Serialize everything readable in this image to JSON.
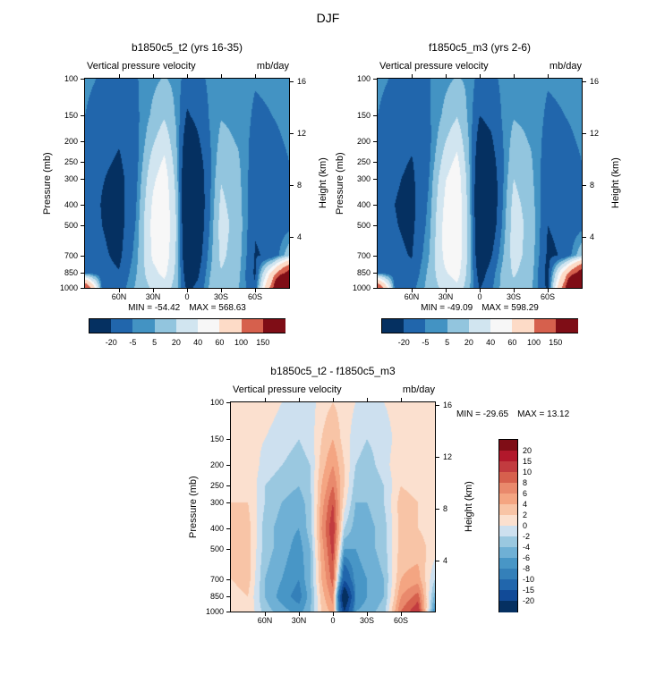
{
  "page": {
    "title": "DJF"
  },
  "axes": {
    "pressure_ticks": [
      100,
      150,
      200,
      250,
      300,
      400,
      500,
      700,
      850,
      1000
    ],
    "height_ticks": [
      {
        "km": 16,
        "p": 103
      },
      {
        "km": 12,
        "p": 182
      },
      {
        "km": 8,
        "p": 323
      },
      {
        "km": 4,
        "p": 572
      }
    ],
    "lat_ticks": [
      {
        "label": "60N",
        "lat": 60
      },
      {
        "label": "30N",
        "lat": 30
      },
      {
        "label": "0",
        "lat": 0
      },
      {
        "label": "30S",
        "lat": -30
      },
      {
        "label": "60S",
        "lat": -60
      }
    ]
  },
  "chart_data": [
    {
      "type": "heatmap",
      "title": "b1850c5_t2 (yrs 16-35)",
      "field_label": "Vertical pressure velocity",
      "units": "mb/day",
      "ylabel_left": "Pressure (mb)",
      "ylabel_right": "Height (km)",
      "stats_min": "MIN = -54.42",
      "stats_max": "MAX = 568.63",
      "lat": [
        90,
        75,
        60,
        45,
        30,
        20,
        10,
        0,
        -10,
        -20,
        -30,
        -45,
        -60,
        -75,
        -90
      ],
      "pressure": [
        100,
        150,
        200,
        250,
        300,
        400,
        500,
        700,
        850,
        1000
      ],
      "levels": [
        -20,
        -5,
        5,
        20,
        40,
        60,
        100,
        150
      ],
      "colors": [
        "#053061",
        "#2166ac",
        "#4393c3",
        "#92c5de",
        "#d1e5f0",
        "#f7f7f7",
        "#fddbc7",
        "#d6604d",
        "#7f0d16"
      ],
      "values": [
        [
          -3,
          -6,
          -8,
          -6,
          2,
          6,
          2,
          -12,
          -8,
          -3,
          1,
          0,
          -4,
          -3,
          -2
        ],
        [
          -5,
          -10,
          -14,
          -8,
          8,
          18,
          4,
          -22,
          -15,
          -4,
          4,
          2,
          -7,
          -5,
          -3
        ],
        [
          -7,
          -14,
          -19,
          -10,
          18,
          32,
          8,
          -34,
          -22,
          -6,
          9,
          4,
          -10,
          -7,
          -4
        ],
        [
          -8,
          -17,
          -22,
          -10,
          28,
          44,
          12,
          -43,
          -28,
          -8,
          14,
          7,
          -12,
          -9,
          -5
        ],
        [
          -9,
          -19,
          -25,
          -9,
          36,
          52,
          16,
          -50,
          -33,
          -8,
          19,
          9,
          -15,
          -11,
          -7
        ],
        [
          -10,
          -21,
          -27,
          -6,
          44,
          56,
          20,
          -54,
          -36,
          -7,
          24,
          11,
          -17,
          -13,
          -8
        ],
        [
          -10,
          -20,
          -27,
          -4,
          48,
          58,
          22,
          -52,
          -35,
          -5,
          27,
          13,
          -19,
          -16,
          -10
        ],
        [
          -9,
          -17,
          -24,
          0,
          44,
          55,
          20,
          -44,
          -29,
          0,
          24,
          11,
          -21,
          -18,
          15
        ],
        [
          -7,
          -14,
          -19,
          4,
          34,
          46,
          16,
          -34,
          -22,
          4,
          19,
          9,
          -23,
          70,
          180
        ],
        [
          155,
          -9,
          -13,
          7,
          23,
          32,
          12,
          -24,
          -16,
          7,
          13,
          6,
          -18,
          120,
          560
        ]
      ]
    },
    {
      "type": "heatmap",
      "title": "f1850c5_m3 (yrs 2-6)",
      "field_label": "Vertical pressure velocity",
      "units": "mb/day",
      "ylabel_left": "Pressure (mb)",
      "ylabel_right": "Height (km)",
      "stats_min": "MIN = -49.09",
      "stats_max": "MAX = 598.29",
      "lat": [
        90,
        75,
        60,
        45,
        30,
        20,
        10,
        0,
        -10,
        -20,
        -30,
        -45,
        -60,
        -75,
        -90
      ],
      "pressure": [
        100,
        150,
        200,
        250,
        300,
        400,
        500,
        700,
        850,
        1000
      ],
      "levels": [
        -20,
        -5,
        5,
        20,
        40,
        60,
        100,
        150
      ],
      "colors": [
        "#053061",
        "#2166ac",
        "#4393c3",
        "#92c5de",
        "#d1e5f0",
        "#f7f7f7",
        "#fddbc7",
        "#d6604d",
        "#7f0d16"
      ],
      "values": [
        [
          -3,
          -6,
          -8,
          -6,
          2,
          6,
          3,
          -11,
          -8,
          -3,
          1,
          0,
          -4,
          -3,
          -2
        ],
        [
          -5,
          -10,
          -14,
          -7,
          9,
          19,
          3,
          -20,
          -15,
          -4,
          4,
          2,
          -7,
          -5,
          -3
        ],
        [
          -7,
          -13,
          -18,
          -9,
          20,
          34,
          6,
          -30,
          -23,
          -6,
          10,
          4,
          -10,
          -7,
          -4
        ],
        [
          -8,
          -16,
          -21,
          -8,
          30,
          46,
          9,
          -38,
          -29,
          -8,
          15,
          7,
          -13,
          -9,
          -5
        ],
        [
          -9,
          -18,
          -23,
          -6,
          39,
          54,
          12,
          -44,
          -34,
          -8,
          20,
          9,
          -16,
          -11,
          -7
        ],
        [
          -10,
          -20,
          -25,
          -3,
          46,
          58,
          15,
          -49,
          -37,
          -6,
          26,
          12,
          -18,
          -13,
          -8
        ],
        [
          -10,
          -19,
          -24,
          -1,
          50,
          59,
          17,
          -47,
          -34,
          -4,
          29,
          14,
          -20,
          -16,
          -10
        ],
        [
          -9,
          -16,
          -21,
          4,
          48,
          57,
          16,
          -40,
          -22,
          3,
          27,
          13,
          -23,
          -18,
          16
        ],
        [
          -7,
          -13,
          -16,
          8,
          38,
          50,
          13,
          -30,
          -12,
          8,
          22,
          11,
          -27,
          75,
          190
        ],
        [
          150,
          -8,
          -10,
          10,
          26,
          34,
          10,
          -21,
          -8,
          9,
          16,
          8,
          -24,
          125,
          595
        ]
      ]
    },
    {
      "type": "heatmap",
      "title": "b1850c5_t2 - f1850c5_m3",
      "field_label": "Vertical pressure velocity",
      "units": "mb/day",
      "ylabel_left": "Pressure (mb)",
      "ylabel_right": "Height (km)",
      "stats_min": "MIN = -29.65",
      "stats_max": "MAX = 13.12",
      "lat": [
        90,
        75,
        60,
        45,
        30,
        20,
        10,
        0,
        -10,
        -20,
        -30,
        -45,
        -60,
        -75,
        -90
      ],
      "pressure": [
        100,
        150,
        200,
        250,
        300,
        400,
        500,
        700,
        850,
        1000
      ],
      "levels": [
        -20,
        -15,
        -10,
        -8,
        -6,
        -4,
        -2,
        0,
        2,
        4,
        6,
        8,
        10,
        15,
        20
      ],
      "colors": [
        "#053061",
        "#114a97",
        "#2166ac",
        "#3480b9",
        "#4896c6",
        "#6fb0d5",
        "#9ac8e0",
        "#cde0ef",
        "#fbe0cf",
        "#f8c4a6",
        "#f4a582",
        "#e9896c",
        "#d6604d",
        "#c23b3f",
        "#b2182b",
        "#7f0d16"
      ],
      "values": [
        [
          0,
          1,
          1,
          0,
          -1,
          -1,
          1,
          2,
          1,
          0,
          -1,
          0,
          1,
          0,
          0
        ],
        [
          1,
          1,
          0,
          -1,
          -2,
          -1,
          2,
          4,
          1,
          -1,
          -2,
          -1,
          1,
          1,
          0
        ],
        [
          1,
          2,
          -1,
          -2,
          -3,
          -2,
          3,
          6,
          2,
          -2,
          -3,
          -1,
          2,
          1,
          0
        ],
        [
          1,
          2,
          -2,
          -3,
          -4,
          -2,
          4,
          8,
          2,
          -3,
          -4,
          -2,
          2,
          1,
          1
        ],
        [
          2,
          2,
          -2,
          -4,
          -5,
          -3,
          5,
          10,
          1,
          -4,
          -4,
          -2,
          3,
          2,
          1
        ],
        [
          2,
          3,
          -3,
          -5,
          -6,
          -3,
          6,
          12,
          -2,
          -5,
          -5,
          -3,
          3,
          2,
          1
        ],
        [
          2,
          3,
          -3,
          -5,
          -7,
          -4,
          5,
          11,
          -6,
          -6,
          -5,
          -3,
          3,
          3,
          1
        ],
        [
          2,
          3,
          -4,
          -6,
          -8,
          -4,
          4,
          9,
          -14,
          -7,
          -6,
          -4,
          4,
          5,
          -2
        ],
        [
          1,
          2,
          -4,
          -7,
          -9,
          -5,
          3,
          7,
          -28,
          -8,
          -6,
          -4,
          6,
          9,
          -5
        ],
        [
          1,
          2,
          -3,
          -5,
          -7,
          -4,
          2,
          5,
          -20,
          -6,
          -5,
          -3,
          8,
          12,
          -8
        ]
      ]
    }
  ]
}
